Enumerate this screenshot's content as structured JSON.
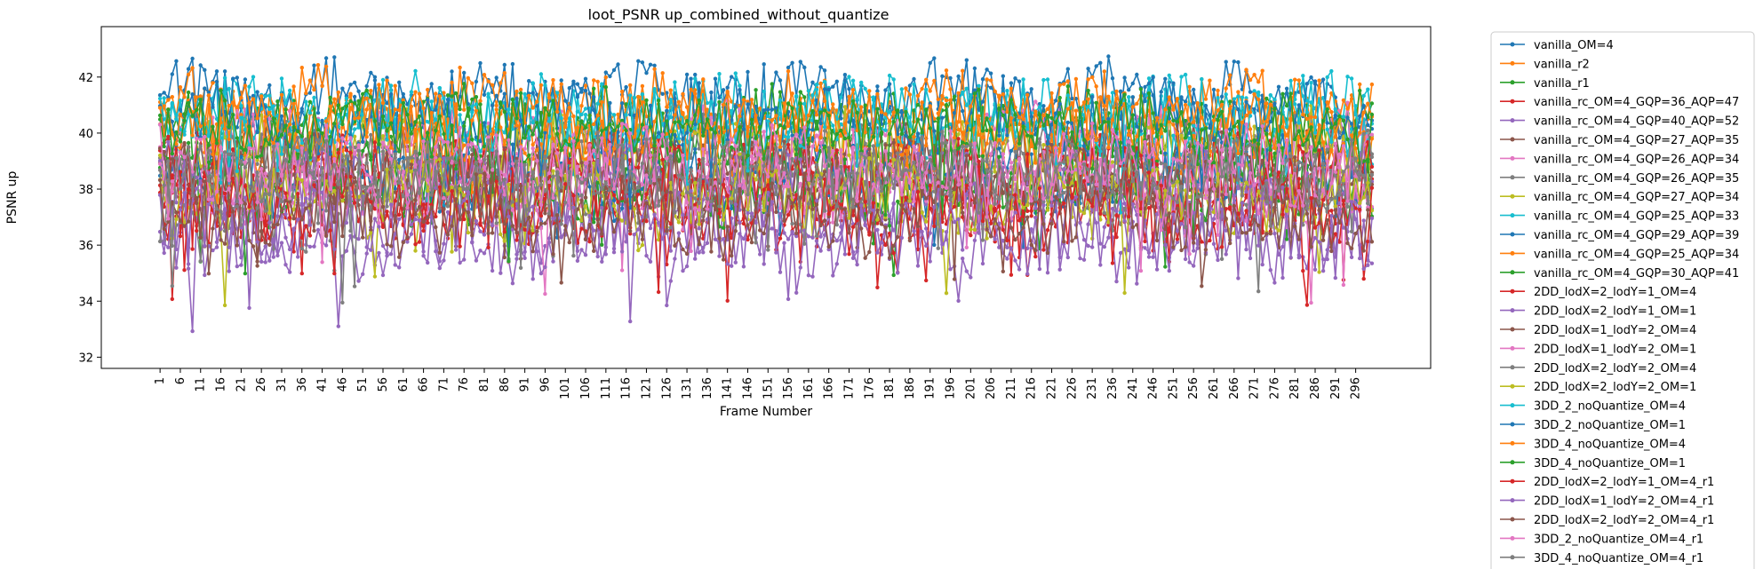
{
  "chart_data": {
    "type": "line",
    "title": "loot_PSNR up_combined_without_quantize",
    "xlabel": "Frame Number",
    "ylabel": "PSNR up",
    "x_start": 1,
    "x_end": 300,
    "x_tick_step": 5,
    "ylim": [
      31.6,
      43.8
    ],
    "yticks": [
      32,
      34,
      36,
      38,
      40,
      42
    ],
    "grid": false,
    "legend_placement": "outside-right",
    "series": [
      {
        "name": "vanilla_OM=4",
        "color": "#1f77b4",
        "mean": 41.3,
        "amp": 0.9,
        "seed": 1
      },
      {
        "name": "vanilla_r2",
        "color": "#ff7f0e",
        "mean": 40.9,
        "amp": 1.0,
        "seed": 2
      },
      {
        "name": "vanilla_r1",
        "color": "#2ca02c",
        "mean": 40.2,
        "amp": 1.0,
        "seed": 3
      },
      {
        "name": "vanilla_rc_OM=4_GQP=36_AQP=47",
        "color": "#d62728",
        "mean": 37.6,
        "amp": 1.0,
        "seed": 4
      },
      {
        "name": "vanilla_rc_OM=4_GQP=40_AQP=52",
        "color": "#9467bd",
        "mean": 36.3,
        "amp": 1.1,
        "seed": 5
      },
      {
        "name": "vanilla_rc_OM=4_GQP=27_AQP=35",
        "color": "#8c564b",
        "mean": 38.9,
        "amp": 1.0,
        "seed": 6
      },
      {
        "name": "vanilla_rc_OM=4_GQP=26_AQP=34",
        "color": "#e377c2",
        "mean": 39.6,
        "amp": 1.0,
        "seed": 7
      },
      {
        "name": "vanilla_rc_OM=4_GQP=26_AQP=35",
        "color": "#7f7f7f",
        "mean": 39.3,
        "amp": 1.0,
        "seed": 8
      },
      {
        "name": "vanilla_rc_OM=4_GQP=27_AQP=34",
        "color": "#bcbd22",
        "mean": 39.4,
        "amp": 1.0,
        "seed": 9
      },
      {
        "name": "vanilla_rc_OM=4_GQP=25_AQP=33",
        "color": "#17becf",
        "mean": 40.4,
        "amp": 1.0,
        "seed": 10
      },
      {
        "name": "vanilla_rc_OM=4_GQP=29_AQP=39",
        "color": "#1f77b4",
        "mean": 38.4,
        "amp": 1.0,
        "seed": 11
      },
      {
        "name": "vanilla_rc_OM=4_GQP=25_AQP=34",
        "color": "#ff7f0e",
        "mean": 40.0,
        "amp": 1.0,
        "seed": 12
      },
      {
        "name": "vanilla_rc_OM=4_GQP=30_AQP=41",
        "color": "#2ca02c",
        "mean": 38.2,
        "amp": 1.0,
        "seed": 13
      },
      {
        "name": "2DD_lodX=2_lodY=1_OM=4",
        "color": "#d62728",
        "mean": 38.6,
        "amp": 1.0,
        "seed": 14
      },
      {
        "name": "2DD_lodX=2_lodY=1_OM=1",
        "color": "#9467bd",
        "mean": 38.1,
        "amp": 1.0,
        "seed": 15
      },
      {
        "name": "2DD_lodX=1_lodY=2_OM=4",
        "color": "#8c564b",
        "mean": 38.5,
        "amp": 1.0,
        "seed": 16
      },
      {
        "name": "2DD_lodX=1_lodY=2_OM=1",
        "color": "#e377c2",
        "mean": 38.0,
        "amp": 1.0,
        "seed": 17
      },
      {
        "name": "2DD_lodX=2_lodY=2_OM=4",
        "color": "#7f7f7f",
        "mean": 37.9,
        "amp": 1.0,
        "seed": 18
      },
      {
        "name": "2DD_lodX=2_lodY=2_OM=1",
        "color": "#bcbd22",
        "mean": 37.7,
        "amp": 1.0,
        "seed": 19
      },
      {
        "name": "3DD_2_noQuantize_OM=4",
        "color": "#17becf",
        "mean": 40.8,
        "amp": 0.9,
        "seed": 20
      },
      {
        "name": "3DD_2_noQuantize_OM=1",
        "color": "#1f77b4",
        "mean": 40.6,
        "amp": 0.9,
        "seed": 21
      },
      {
        "name": "3DD_4_noQuantize_OM=4",
        "color": "#ff7f0e",
        "mean": 40.5,
        "amp": 0.9,
        "seed": 22
      },
      {
        "name": "3DD_4_noQuantize_OM=1",
        "color": "#2ca02c",
        "mean": 40.1,
        "amp": 0.9,
        "seed": 23
      },
      {
        "name": "2DD_lodX=2_lodY=1_OM=4_r1",
        "color": "#d62728",
        "mean": 37.3,
        "amp": 1.0,
        "seed": 24
      },
      {
        "name": "2DD_lodX=1_lodY=2_OM=4_r1",
        "color": "#9467bd",
        "mean": 36.6,
        "amp": 1.1,
        "seed": 25
      },
      {
        "name": "2DD_lodX=2_lodY=2_OM=4_r1",
        "color": "#8c564b",
        "mean": 37.0,
        "amp": 1.0,
        "seed": 26
      },
      {
        "name": "3DD_2_noQuantize_OM=4_r1",
        "color": "#e377c2",
        "mean": 38.8,
        "amp": 1.0,
        "seed": 27
      },
      {
        "name": "3DD_4_noQuantize_OM=4_r1",
        "color": "#7f7f7f",
        "mean": 38.6,
        "amp": 1.0,
        "seed": 28
      }
    ]
  }
}
